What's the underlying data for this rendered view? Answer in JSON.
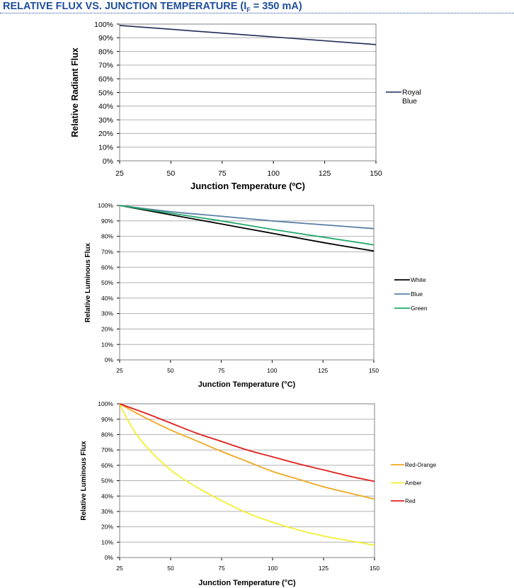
{
  "page": {
    "title_main": "RELATIVE FLUX VS. JUNCTION TEMPERATURE (I",
    "title_sub": "F",
    "title_tail": " = 350 mA)"
  },
  "colors": {
    "title": "#1f4e9b",
    "royal_blue": "#1f2a56",
    "white": "#000000",
    "blue": "#5b7fa6",
    "green": "#22a86b",
    "red_orange": "#f0a81e",
    "amber": "#f2ef32",
    "red": "#e0201e"
  },
  "chart_data": [
    {
      "type": "line",
      "xlabel": "Junction Temperature (ºC)",
      "ylabel": "Relative Radiant Flux",
      "xlim": [
        25,
        150
      ],
      "ylim": [
        0,
        100
      ],
      "x_ticks": [
        "25",
        "50",
        "75",
        "100",
        "125",
        "150"
      ],
      "y_ticks": [
        "0%",
        "10%",
        "20%",
        "30%",
        "40%",
        "50%",
        "60%",
        "70%",
        "80%",
        "90%",
        "100%"
      ],
      "grid": true,
      "legend_position": "right",
      "series": [
        {
          "name": "Royal Blue",
          "name_lines": [
            "Royal",
            "Blue"
          ],
          "color": "#1f2a56",
          "points": [
            [
              25,
              99
            ],
            [
              150,
              85
            ]
          ]
        }
      ]
    },
    {
      "type": "line",
      "xlabel": "Junction Temperature (°C)",
      "ylabel": "Relative Luminous Flux",
      "xlim": [
        25,
        150
      ],
      "ylim": [
        0,
        100
      ],
      "x_ticks": [
        "25",
        "50",
        "75",
        "100",
        "125",
        "150"
      ],
      "y_ticks": [
        "0%",
        "10%",
        "20%",
        "30%",
        "40%",
        "50%",
        "60%",
        "70%",
        "80%",
        "90%",
        "100%"
      ],
      "grid": true,
      "legend_position": "right",
      "series": [
        {
          "name": "White",
          "name_lines": [
            "White"
          ],
          "color": "#000000",
          "points": [
            [
              25,
              100
            ],
            [
              50,
              94
            ],
            [
              75,
              88
            ],
            [
              100,
              82
            ],
            [
              125,
              76
            ],
            [
              150,
              70.5
            ]
          ]
        },
        {
          "name": "Blue",
          "name_lines": [
            "Blue"
          ],
          "color": "#5b7fa6",
          "points": [
            [
              25,
              100
            ],
            [
              50,
              96
            ],
            [
              75,
              93
            ],
            [
              100,
              90
            ],
            [
              125,
              87.5
            ],
            [
              150,
              85
            ]
          ]
        },
        {
          "name": "Green",
          "name_lines": [
            "Green"
          ],
          "color": "#22a86b",
          "points": [
            [
              25,
              100
            ],
            [
              50,
              95
            ],
            [
              75,
              90
            ],
            [
              100,
              84.5
            ],
            [
              125,
              79.5
            ],
            [
              150,
              74.5
            ]
          ]
        }
      ]
    },
    {
      "type": "line",
      "xlabel": "Junction Temperature (°C)",
      "ylabel": "Relative Luminous Flux",
      "xlim": [
        25,
        150
      ],
      "ylim": [
        0,
        100
      ],
      "x_ticks": [
        "25",
        "50",
        "75",
        "100",
        "125",
        "150"
      ],
      "y_ticks": [
        "0%",
        "10%",
        "20%",
        "30%",
        "40%",
        "50%",
        "60%",
        "70%",
        "80%",
        "90%",
        "100%"
      ],
      "grid": true,
      "legend_position": "right",
      "series": [
        {
          "name": "Red-Orange",
          "name_lines": [
            "Red-Orange"
          ],
          "color": "#f0a81e",
          "points": [
            [
              25,
              100
            ],
            [
              37.5,
              91
            ],
            [
              50,
              83
            ],
            [
              62.5,
              76
            ],
            [
              75,
              69
            ],
            [
              87.5,
              62.5
            ],
            [
              100,
              56
            ],
            [
              112.5,
              51
            ],
            [
              125,
              46
            ],
            [
              137.5,
              42
            ],
            [
              150,
              38
            ]
          ]
        },
        {
          "name": "Amber",
          "name_lines": [
            "Amber"
          ],
          "color": "#f2ef32",
          "points": [
            [
              25,
              100
            ],
            [
              30,
              87
            ],
            [
              37.5,
              73
            ],
            [
              50,
              57
            ],
            [
              62.5,
              46
            ],
            [
              75,
              37
            ],
            [
              87.5,
              29
            ],
            [
              100,
              23
            ],
            [
              112.5,
              18
            ],
            [
              125,
              14
            ],
            [
              137.5,
              11
            ],
            [
              150,
              8
            ]
          ]
        },
        {
          "name": "Red",
          "name_lines": [
            "Red"
          ],
          "color": "#e0201e",
          "points": [
            [
              25,
              100
            ],
            [
              37.5,
              94
            ],
            [
              50,
              87.5
            ],
            [
              62.5,
              81
            ],
            [
              75,
              75.5
            ],
            [
              87.5,
              70
            ],
            [
              100,
              65.5
            ],
            [
              112.5,
              61
            ],
            [
              125,
              57
            ],
            [
              137.5,
              53
            ],
            [
              150,
              49.5
            ]
          ]
        }
      ]
    }
  ]
}
